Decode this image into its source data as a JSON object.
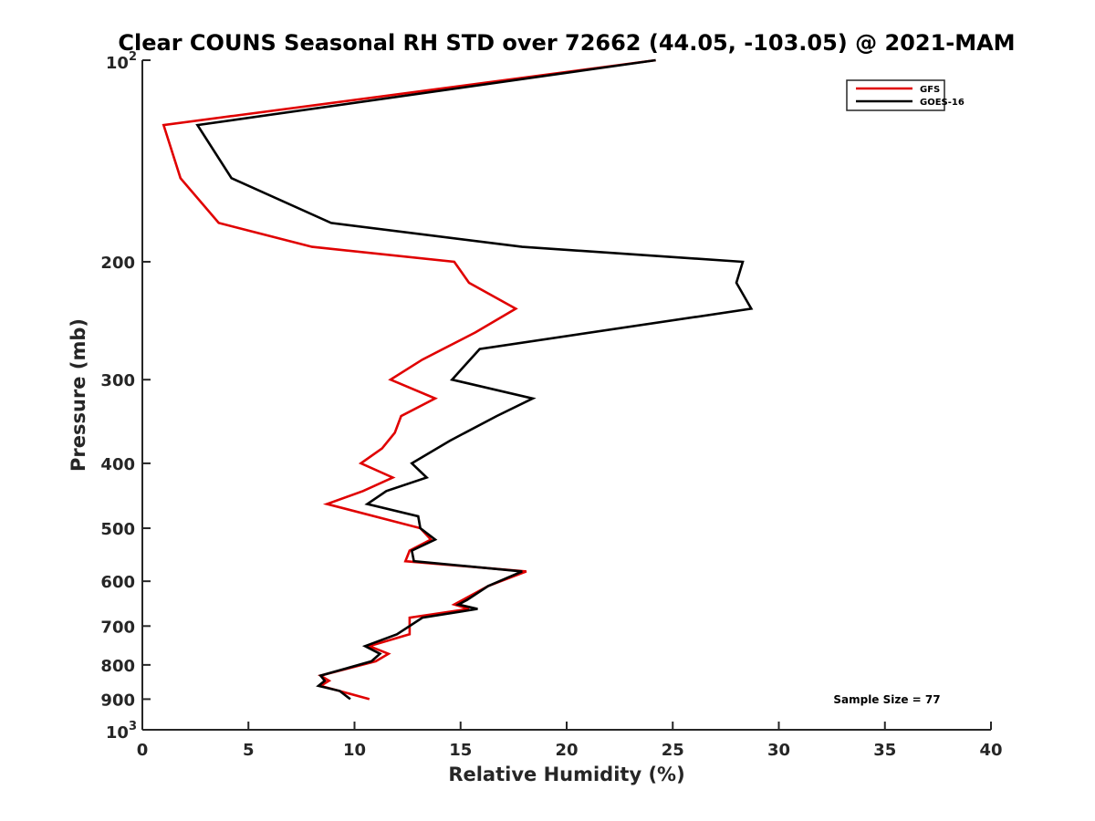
{
  "chart_data": {
    "type": "line",
    "title": "Clear COUNS Seasonal RH STD over 72662 (44.05, -103.05) @ 2021-MAM",
    "xlabel": "Relative Humidity (%)",
    "ylabel": "Pressure (mb)",
    "xlim": [
      0,
      40
    ],
    "ylim": [
      100,
      1000
    ],
    "yscale": "log",
    "y_reversed": true,
    "x_ticks": [
      0,
      5,
      10,
      15,
      20,
      25,
      30,
      35,
      40
    ],
    "x_tick_labels": [
      "0",
      "5",
      "10",
      "15",
      "20",
      "25",
      "30",
      "35",
      "40"
    ],
    "y_ticks": [
      {
        "value": 100,
        "base": "10",
        "exp": "2"
      },
      {
        "value": 200,
        "label": "200"
      },
      {
        "value": 300,
        "label": "300"
      },
      {
        "value": 400,
        "label": "400"
      },
      {
        "value": 500,
        "label": "500"
      },
      {
        "value": 600,
        "label": "600"
      },
      {
        "value": 700,
        "label": "700"
      },
      {
        "value": 800,
        "label": "800"
      },
      {
        "value": 900,
        "label": "900"
      },
      {
        "value": 1000,
        "base": "10",
        "exp": "3"
      }
    ],
    "legend": {
      "position": "top-right"
    },
    "annotation": "Sample Size = 77",
    "series": [
      {
        "name": "GFS",
        "color": "#e00000",
        "points": [
          [
            24.2,
            100
          ],
          [
            1.0,
            125
          ],
          [
            1.8,
            150
          ],
          [
            3.6,
            175
          ],
          [
            8.0,
            190
          ],
          [
            14.7,
            200
          ],
          [
            15.4,
            215
          ],
          [
            17.6,
            235
          ],
          [
            15.7,
            255
          ],
          [
            13.2,
            280
          ],
          [
            11.7,
            300
          ],
          [
            13.8,
            320
          ],
          [
            12.2,
            340
          ],
          [
            11.9,
            360
          ],
          [
            11.3,
            380
          ],
          [
            10.3,
            400
          ],
          [
            11.8,
            420
          ],
          [
            10.4,
            440
          ],
          [
            8.7,
            460
          ],
          [
            13.1,
            500
          ],
          [
            13.6,
            520
          ],
          [
            12.6,
            540
          ],
          [
            12.4,
            560
          ],
          [
            18.1,
            580
          ],
          [
            16.3,
            610
          ],
          [
            14.7,
            650
          ],
          [
            15.4,
            660
          ],
          [
            12.6,
            680
          ],
          [
            12.6,
            720
          ],
          [
            10.7,
            750
          ],
          [
            11.6,
            770
          ],
          [
            11.0,
            790
          ],
          [
            8.4,
            830
          ],
          [
            8.8,
            845
          ],
          [
            8.4,
            860
          ],
          [
            9.0,
            870
          ],
          [
            10.7,
            900
          ]
        ]
      },
      {
        "name": "GOES-16",
        "color": "#000000",
        "points": [
          [
            24.2,
            100
          ],
          [
            2.6,
            125
          ],
          [
            4.2,
            150
          ],
          [
            8.9,
            175
          ],
          [
            17.9,
            190
          ],
          [
            28.3,
            200
          ],
          [
            28.0,
            215
          ],
          [
            28.7,
            235
          ],
          [
            15.9,
            270
          ],
          [
            14.6,
            300
          ],
          [
            18.4,
            320
          ],
          [
            16.7,
            340
          ],
          [
            14.5,
            370
          ],
          [
            12.7,
            400
          ],
          [
            13.4,
            420
          ],
          [
            11.5,
            440
          ],
          [
            10.6,
            460
          ],
          [
            13.0,
            480
          ],
          [
            13.1,
            500
          ],
          [
            13.8,
            520
          ],
          [
            12.7,
            540
          ],
          [
            12.8,
            560
          ],
          [
            17.9,
            580
          ],
          [
            16.3,
            610
          ],
          [
            15.3,
            640
          ],
          [
            14.9,
            650
          ],
          [
            15.8,
            660
          ],
          [
            13.2,
            680
          ],
          [
            12.0,
            720
          ],
          [
            10.5,
            750
          ],
          [
            11.2,
            770
          ],
          [
            10.8,
            790
          ],
          [
            8.4,
            830
          ],
          [
            8.6,
            845
          ],
          [
            8.3,
            860
          ],
          [
            9.3,
            875
          ],
          [
            9.8,
            900
          ]
        ]
      }
    ]
  }
}
